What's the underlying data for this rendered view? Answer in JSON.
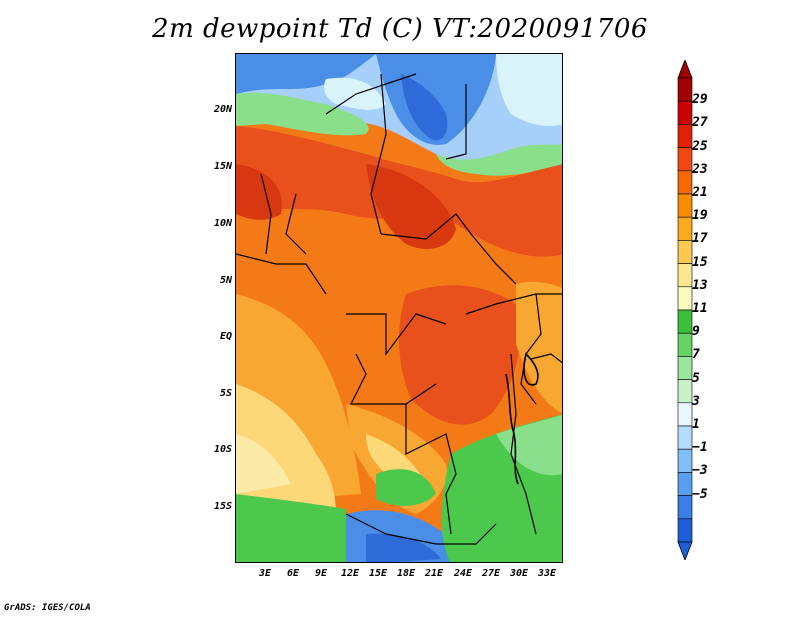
{
  "title": "2m dewpoint Td (C) VT:2020091706",
  "footer": "GrADS: IGES/COLA",
  "map": {
    "y_labels": [
      "20N",
      "15N",
      "10N",
      "5N",
      "EQ",
      "5S",
      "10S",
      "15S"
    ],
    "x_labels": [
      "3E",
      "6E",
      "9E",
      "12E",
      "15E",
      "18E",
      "21E",
      "24E",
      "27E",
      "30E",
      "33E"
    ]
  },
  "colorbar": {
    "labels": [
      "29",
      "27",
      "25",
      "23",
      "21",
      "19",
      "17",
      "15",
      "13",
      "11",
      "9",
      "7",
      "5",
      "3",
      "1",
      "−1",
      "−3",
      "−5"
    ],
    "colors": [
      "#a00000",
      "#c80000",
      "#e02000",
      "#f04810",
      "#f46a00",
      "#f88c00",
      "#faaa20",
      "#fcc850",
      "#fce890",
      "#fcfcbe",
      "#3cc03c",
      "#64d264",
      "#9ae69a",
      "#c6f2c6",
      "#e8f8ff",
      "#b4dcfc",
      "#82bef8",
      "#5a9ef0",
      "#3a7ee6",
      "#1e5ed8"
    ],
    "top_tip_color": "#a00000",
    "bottom_tip_color": "#1e5ed8"
  },
  "colors": {
    "red_orange": "#e8501c",
    "orange": "#f47a18",
    "light_orange": "#f8a832",
    "yellow": "#fcd878",
    "pale_yellow": "#fceaa8",
    "green": "#4cc84c",
    "light_green": "#8ae08a",
    "pale_cyan": "#d8f4fa",
    "light_blue": "#a6d0fa",
    "blue": "#4a8ee8",
    "dark_blue": "#2e6ad8"
  }
}
